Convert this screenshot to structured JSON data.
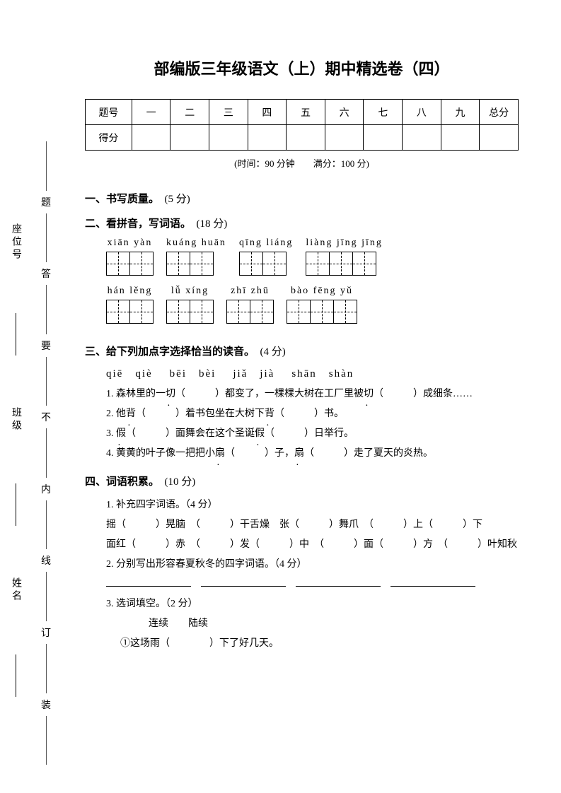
{
  "title": "部编版三年级语文（上）期中精选卷（四）",
  "side_chars": [
    "题",
    "答",
    "要",
    "不",
    "内",
    "线",
    "订",
    "装"
  ],
  "side_labels": [
    "座位号",
    "班级",
    "姓名"
  ],
  "score_table": {
    "head": [
      "题号",
      "一",
      "二",
      "三",
      "四",
      "五",
      "六",
      "七",
      "八",
      "九",
      "总分"
    ],
    "row2_label": "得分"
  },
  "meta": "(时间：90 分钟　　满分：100 分)",
  "sec1": {
    "t": "一、书写质量。　",
    "pts": "(5 分)"
  },
  "sec2": {
    "t": "二、看拼音，写词语。　",
    "pts": "(18 分)"
  },
  "pinyin_row1": [
    {
      "py": "xiān yàn",
      "n": 2
    },
    {
      "py": "kuáng huān",
      "n": 2
    },
    {
      "py": "qīng liáng",
      "n": 2
    },
    {
      "py": "liàng jīng jīng",
      "n": 3
    }
  ],
  "pinyin_row2": [
    {
      "py": "hán lěng",
      "n": 2
    },
    {
      "py": "lǚ xíng",
      "n": 2
    },
    {
      "py": "zhī zhū",
      "n": 2
    },
    {
      "py": "bào fēng yǔ",
      "n": 3
    }
  ],
  "sec3": {
    "t": "三、给下列加点字选择恰当的读音。　",
    "pts": "(4 分)"
  },
  "s3_opts": [
    {
      "a": "qiē",
      "b": "qiè"
    },
    {
      "a": "bēi",
      "b": "bèi"
    },
    {
      "a": "jiǎ",
      "b": "jià"
    },
    {
      "a": "shān",
      "b": "shàn"
    }
  ],
  "s3_lines": [
    [
      "1. 森林里的一",
      {
        "d": "切"
      },
      "（　　　）都变了，一棵棵大树在工厂里被",
      {
        "d": "切"
      },
      "（　　　）成细条……"
    ],
    [
      "2. 他",
      {
        "d": "背"
      },
      "（　　　）着书包坐在大树下",
      {
        "d": "背"
      },
      "（　　　）书。"
    ],
    [
      "3. ",
      {
        "d": "假"
      },
      "（　　　）面舞会在这个圣诞",
      {
        "d": "假"
      },
      "（　　　）日举行。"
    ],
    [
      "4. 黄黄的叶子像一把把小",
      {
        "d": "扇"
      },
      "（　　　）子，",
      {
        "d": "扇"
      },
      "（　　　）走了夏天的炎热。"
    ]
  ],
  "sec4": {
    "t": "四、词语积累。　",
    "pts": "(10 分)"
  },
  "s4_1": "1. 补充四字词语。（4 分）",
  "s4_1_line1": "摇（　　　）晃脑　（　　　）干舌燥　张（　　　）舞爪　（　　　）上（　　　）下",
  "s4_1_line2": "面红（　　　）赤　（　　　）发（　　　）中　（　　　）面（　　　）方　（　　　）叶知秋",
  "s4_2": "2. 分别写出形容春夏秋冬的四字词语。（4 分）",
  "s4_3": "3. 选词填空。（2 分）",
  "s4_3_words": "连续　　陆续",
  "s4_3_q": "①这场雨（　　　　）下了好几天。"
}
